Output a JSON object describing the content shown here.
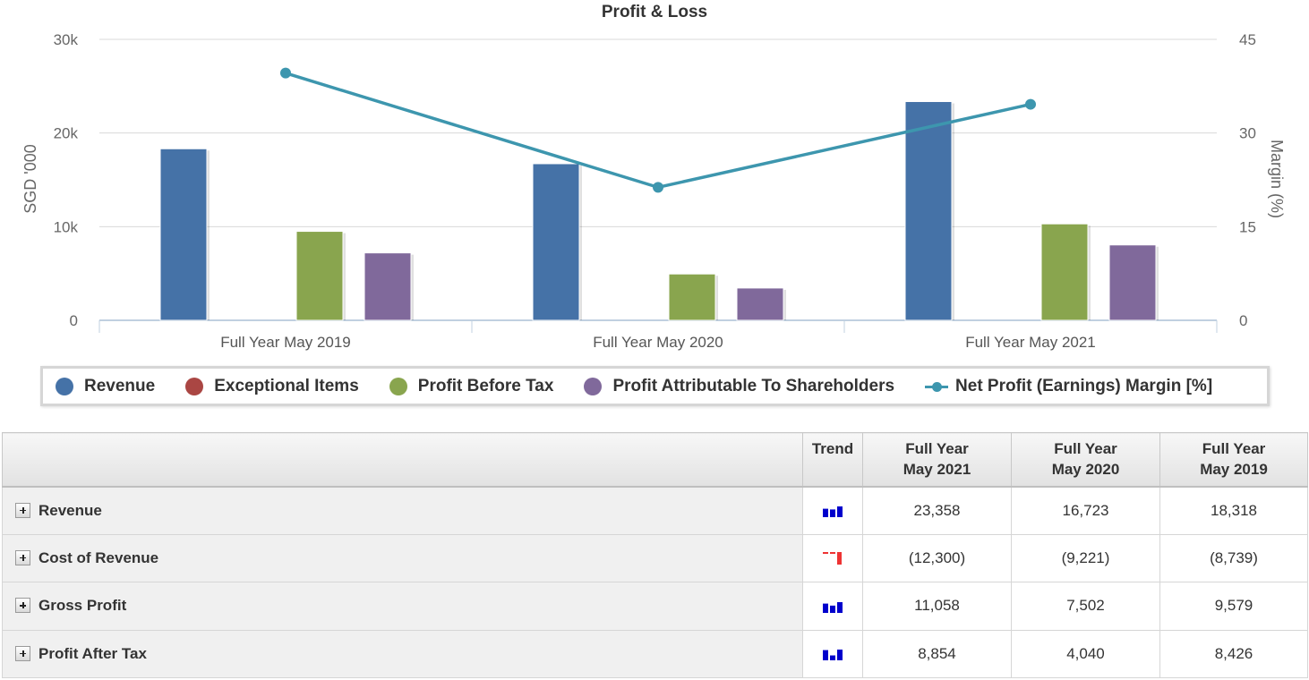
{
  "chart_data": {
    "type": "bar",
    "title": "Profit & Loss",
    "categories": [
      "Full Year May 2019",
      "Full Year May 2020",
      "Full Year May 2021"
    ],
    "ylabel": "SGD '000",
    "y2label": "Margin (%)",
    "ylim": [
      0,
      30000
    ],
    "y2lim": [
      0,
      45
    ],
    "yticks": [
      "0",
      "10k",
      "20k",
      "30k"
    ],
    "y2ticks": [
      "0",
      "15",
      "30",
      "45"
    ],
    "grid": true,
    "legend_position": "bottom",
    "series": [
      {
        "name": "Revenue",
        "type": "bar",
        "color": "#4572a7",
        "values": [
          18318,
          16723,
          23358
        ]
      },
      {
        "name": "Exceptional Items",
        "type": "bar",
        "color": "#aa4643",
        "values": [
          0,
          0,
          0
        ]
      },
      {
        "name": "Profit Before Tax",
        "type": "bar",
        "color": "#89a54e",
        "values": [
          9500,
          4950,
          10300
        ]
      },
      {
        "name": "Profit Attributable To Shareholders",
        "type": "bar",
        "color": "#80699b",
        "values": [
          7200,
          3450,
          8050
        ]
      },
      {
        "name": "Net Profit (Earnings) Margin [%]",
        "type": "line",
        "axis": "right",
        "color": "#3d96ae",
        "values": [
          39.6,
          21.3,
          34.6
        ]
      }
    ]
  },
  "table": {
    "headers": {
      "label": "",
      "trend": "Trend",
      "col1": [
        "Full Year",
        "May 2021"
      ],
      "col2": [
        "Full Year",
        "May 2020"
      ],
      "col3": [
        "Full Year",
        "May 2019"
      ]
    },
    "rows": [
      {
        "label": "Revenue",
        "values": [
          "23,358",
          "16,723",
          "18,318"
        ],
        "trend_color": "#0000cc",
        "trend_kind": "bars"
      },
      {
        "label": "Cost of Revenue",
        "values": [
          "(12,300)",
          "(9,221)",
          "(8,739)"
        ],
        "trend_color": "#ee3333",
        "trend_kind": "negative"
      },
      {
        "label": "Gross Profit",
        "values": [
          "11,058",
          "7,502",
          "9,579"
        ],
        "trend_color": "#0000cc",
        "trend_kind": "bars"
      },
      {
        "label": "Profit After Tax",
        "values": [
          "8,854",
          "4,040",
          "8,426"
        ],
        "trend_color": "#0000cc",
        "trend_kind": "bars"
      }
    ]
  }
}
